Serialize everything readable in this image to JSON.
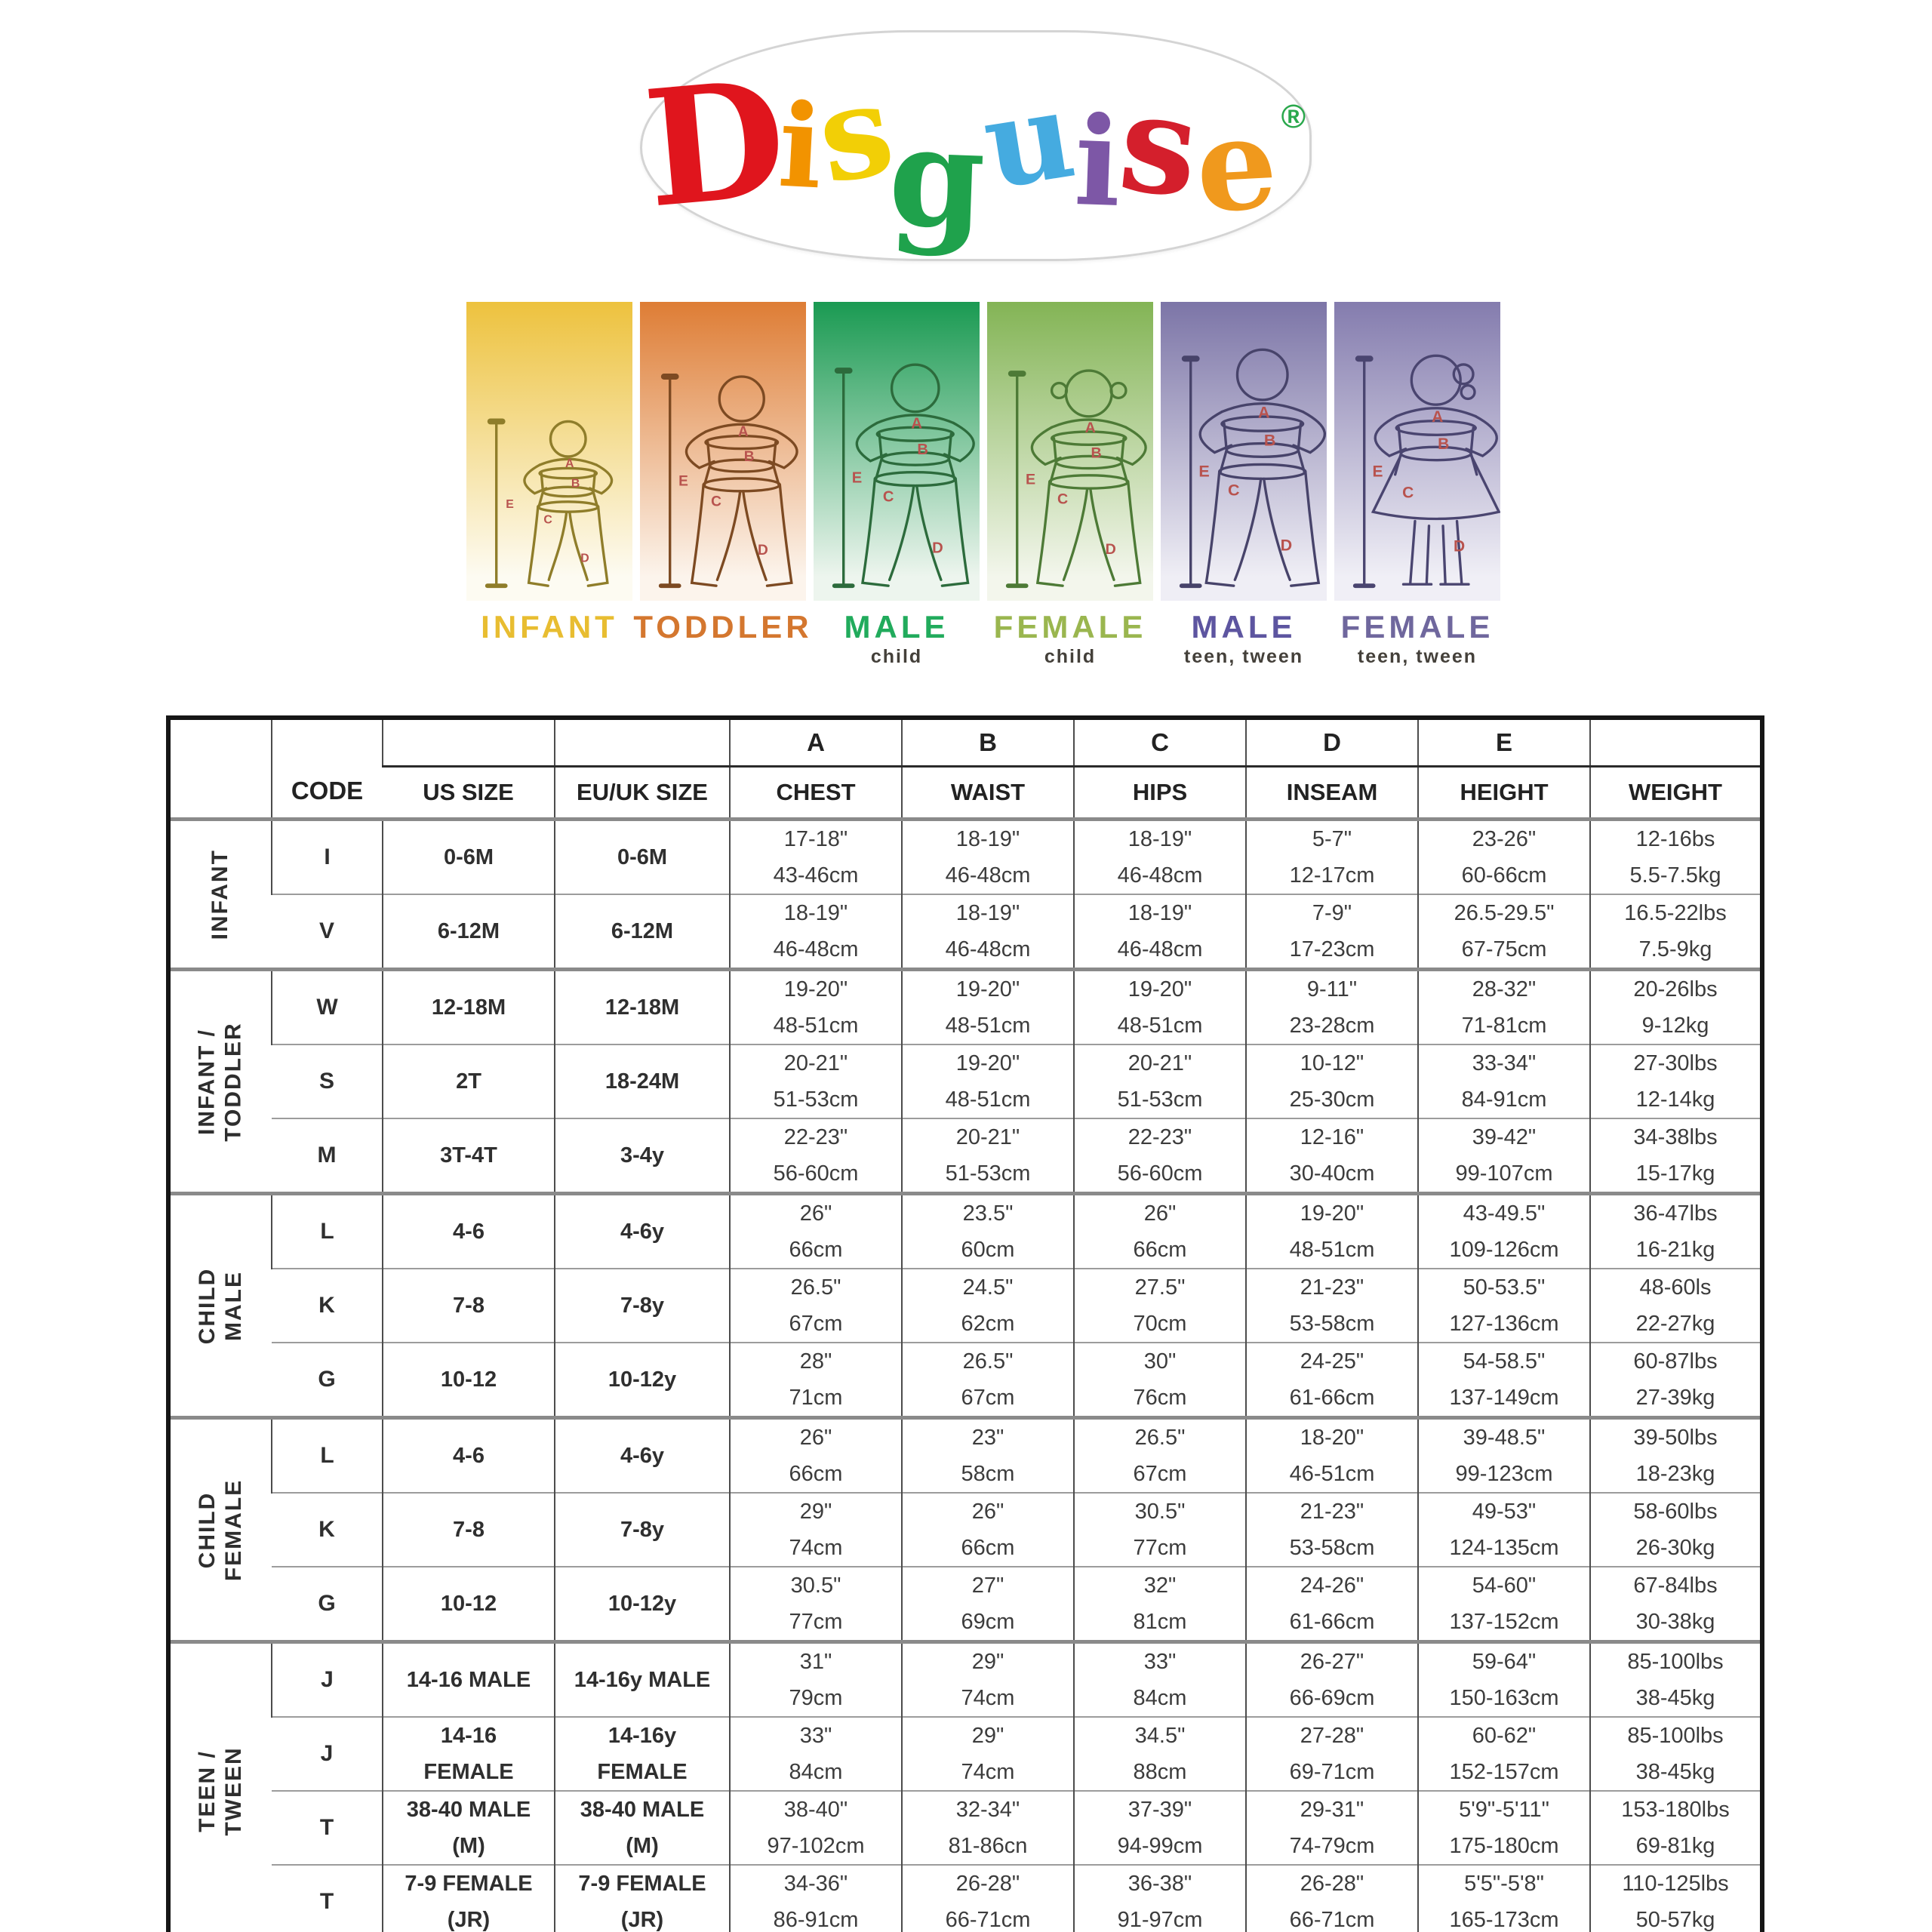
{
  "logo": {
    "letters": [
      {
        "ch": "D",
        "color": "#e0151d"
      },
      {
        "ch": "i",
        "color": "#f29300"
      },
      {
        "ch": "s",
        "color": "#f2cf06"
      },
      {
        "ch": "g",
        "color": "#1fa24c"
      },
      {
        "ch": "u",
        "color": "#45abe0"
      },
      {
        "ch": "i",
        "color": "#7d57a6"
      },
      {
        "ch": "s",
        "color": "#d41f2c"
      },
      {
        "ch": "e",
        "color": "#f0991d"
      }
    ],
    "registered": "®",
    "registered_color": "#2aa84c"
  },
  "figures_common": {
    "measure_letters": [
      "A",
      "B",
      "C",
      "D",
      "E"
    ],
    "measure_letter_color": "#b8534e"
  },
  "figures": [
    {
      "label": "INFANT",
      "sublabel": "",
      "variant": "infant",
      "label_color": "#e8bd31",
      "bg_top": "#edc23e",
      "bg_bottom": "#fdfbf2",
      "line_color": "#8f7d2a"
    },
    {
      "label": "TODDLER",
      "sublabel": "",
      "variant": "toddler",
      "label_color": "#d4772f",
      "bg_top": "#de7d35",
      "bg_bottom": "#fcf4ec",
      "line_color": "#7d4a22"
    },
    {
      "label": "MALE",
      "sublabel": "child",
      "variant": "child-male",
      "label_color": "#21ab5c",
      "bg_top": "#1a9a52",
      "bg_bottom": "#edf5ee",
      "line_color": "#2c6b3c"
    },
    {
      "label": "FEMALE",
      "sublabel": "child",
      "variant": "child-female",
      "label_color": "#9ab64f",
      "bg_top": "#83b455",
      "bg_bottom": "#f3f6ec",
      "line_color": "#4d7a36"
    },
    {
      "label": "MALE",
      "sublabel": "teen, tween",
      "variant": "teen-male",
      "label_color": "#5d55a0",
      "bg_top": "#7c75a7",
      "bg_bottom": "#efeef5",
      "line_color": "#47436a"
    },
    {
      "label": "FEMALE",
      "sublabel": "teen, tween",
      "variant": "teen-female",
      "label_color": "#6f679d",
      "bg_top": "#847cae",
      "bg_bottom": "#f0eff6",
      "line_color": "#4a4570"
    }
  ],
  "table": {
    "letter_headers": [
      "A",
      "B",
      "C",
      "D",
      "E"
    ],
    "column_headers": [
      "CODE",
      "US SIZE",
      "EU/UK SIZE",
      "CHEST",
      "WAIST",
      "HIPS",
      "INSEAM",
      "HEIGHT",
      "WEIGHT"
    ],
    "groups": [
      {
        "name": "INFANT",
        "rows": [
          {
            "code": "I",
            "us": [
              "0-6M"
            ],
            "eu": [
              "0-6M"
            ],
            "chest": [
              "17-18\"",
              "43-46cm"
            ],
            "waist": [
              "18-19\"",
              "46-48cm"
            ],
            "hips": [
              "18-19\"",
              "46-48cm"
            ],
            "inseam": [
              "5-7\"",
              "12-17cm"
            ],
            "height": [
              "23-26\"",
              "60-66cm"
            ],
            "weight": [
              "12-16bs",
              "5.5-7.5kg"
            ]
          },
          {
            "code": "V",
            "us": [
              "6-12M"
            ],
            "eu": [
              "6-12M"
            ],
            "chest": [
              "18-19\"",
              "46-48cm"
            ],
            "waist": [
              "18-19\"",
              "46-48cm"
            ],
            "hips": [
              "18-19\"",
              "46-48cm"
            ],
            "inseam": [
              "7-9\"",
              "17-23cm"
            ],
            "height": [
              "26.5-29.5\"",
              "67-75cm"
            ],
            "weight": [
              "16.5-22lbs",
              "7.5-9kg"
            ]
          }
        ]
      },
      {
        "name": "INFANT /\nTODDLER",
        "rows": [
          {
            "code": "W",
            "us": [
              "12-18M"
            ],
            "eu": [
              "12-18M"
            ],
            "chest": [
              "19-20\"",
              "48-51cm"
            ],
            "waist": [
              "19-20\"",
              "48-51cm"
            ],
            "hips": [
              "19-20\"",
              "48-51cm"
            ],
            "inseam": [
              "9-11\"",
              "23-28cm"
            ],
            "height": [
              "28-32\"",
              "71-81cm"
            ],
            "weight": [
              "20-26lbs",
              "9-12kg"
            ]
          },
          {
            "code": "S",
            "us": [
              "2T"
            ],
            "eu": [
              "18-24M"
            ],
            "chest": [
              "20-21\"",
              "51-53cm"
            ],
            "waist": [
              "19-20\"",
              "48-51cm"
            ],
            "hips": [
              "20-21\"",
              "51-53cm"
            ],
            "inseam": [
              "10-12\"",
              "25-30cm"
            ],
            "height": [
              "33-34\"",
              "84-91cm"
            ],
            "weight": [
              "27-30lbs",
              "12-14kg"
            ]
          },
          {
            "code": "M",
            "us": [
              "3T-4T"
            ],
            "eu": [
              "3-4y"
            ],
            "chest": [
              "22-23\"",
              "56-60cm"
            ],
            "waist": [
              "20-21\"",
              "51-53cm"
            ],
            "hips": [
              "22-23\"",
              "56-60cm"
            ],
            "inseam": [
              "12-16\"",
              "30-40cm"
            ],
            "height": [
              "39-42\"",
              "99-107cm"
            ],
            "weight": [
              "34-38lbs",
              "15-17kg"
            ]
          }
        ]
      },
      {
        "name": "CHILD MALE",
        "rows": [
          {
            "code": "L",
            "us": [
              "4-6"
            ],
            "eu": [
              "4-6y"
            ],
            "chest": [
              "26\"",
              "66cm"
            ],
            "waist": [
              "23.5\"",
              "60cm"
            ],
            "hips": [
              "26\"",
              "66cm"
            ],
            "inseam": [
              "19-20\"",
              "48-51cm"
            ],
            "height": [
              "43-49.5\"",
              "109-126cm"
            ],
            "weight": [
              "36-47lbs",
              "16-21kg"
            ]
          },
          {
            "code": "K",
            "us": [
              "7-8"
            ],
            "eu": [
              "7-8y"
            ],
            "chest": [
              "26.5\"",
              "67cm"
            ],
            "waist": [
              "24.5\"",
              "62cm"
            ],
            "hips": [
              "27.5\"",
              "70cm"
            ],
            "inseam": [
              "21-23\"",
              "53-58cm"
            ],
            "height": [
              "50-53.5\"",
              "127-136cm"
            ],
            "weight": [
              "48-60ls",
              "22-27kg"
            ]
          },
          {
            "code": "G",
            "us": [
              "10-12"
            ],
            "eu": [
              "10-12y"
            ],
            "chest": [
              "28\"",
              "71cm"
            ],
            "waist": [
              "26.5\"",
              "67cm"
            ],
            "hips": [
              "30\"",
              "76cm"
            ],
            "inseam": [
              "24-25\"",
              "61-66cm"
            ],
            "height": [
              "54-58.5\"",
              "137-149cm"
            ],
            "weight": [
              "60-87lbs",
              "27-39kg"
            ]
          }
        ]
      },
      {
        "name": "CHILD FEMALE",
        "rows": [
          {
            "code": "L",
            "us": [
              "4-6"
            ],
            "eu": [
              "4-6y"
            ],
            "chest": [
              "26\"",
              "66cm"
            ],
            "waist": [
              "23\"",
              "58cm"
            ],
            "hips": [
              "26.5\"",
              "67cm"
            ],
            "inseam": [
              "18-20\"",
              "46-51cm"
            ],
            "height": [
              "39-48.5\"",
              "99-123cm"
            ],
            "weight": [
              "39-50lbs",
              "18-23kg"
            ]
          },
          {
            "code": "K",
            "us": [
              "7-8"
            ],
            "eu": [
              "7-8y"
            ],
            "chest": [
              "29\"",
              "74cm"
            ],
            "waist": [
              "26\"",
              "66cm"
            ],
            "hips": [
              "30.5\"",
              "77cm"
            ],
            "inseam": [
              "21-23\"",
              "53-58cm"
            ],
            "height": [
              "49-53\"",
              "124-135cm"
            ],
            "weight": [
              "58-60lbs",
              "26-30kg"
            ]
          },
          {
            "code": "G",
            "us": [
              "10-12"
            ],
            "eu": [
              "10-12y"
            ],
            "chest": [
              "30.5\"",
              "77cm"
            ],
            "waist": [
              "27\"",
              "69cm"
            ],
            "hips": [
              "32\"",
              "81cm"
            ],
            "inseam": [
              "24-26\"",
              "61-66cm"
            ],
            "height": [
              "54-60\"",
              "137-152cm"
            ],
            "weight": [
              "67-84lbs",
              "30-38kg"
            ]
          }
        ]
      },
      {
        "name": "TEEN / TWEEN",
        "rows": [
          {
            "code": "J",
            "us": [
              "14-16 MALE"
            ],
            "eu": [
              "14-16y MALE"
            ],
            "chest": [
              "31\"",
              "79cm"
            ],
            "waist": [
              "29\"",
              "74cm"
            ],
            "hips": [
              "33\"",
              "84cm"
            ],
            "inseam": [
              "26-27\"",
              "66-69cm"
            ],
            "height": [
              "59-64\"",
              "150-163cm"
            ],
            "weight": [
              "85-100lbs",
              "38-45kg"
            ]
          },
          {
            "code": "J",
            "us": [
              "14-16",
              "FEMALE"
            ],
            "eu": [
              "14-16y",
              "FEMALE"
            ],
            "chest": [
              "33\"",
              "84cm"
            ],
            "waist": [
              "29\"",
              "74cm"
            ],
            "hips": [
              "34.5\"",
              "88cm"
            ],
            "inseam": [
              "27-28\"",
              "69-71cm"
            ],
            "height": [
              "60-62\"",
              "152-157cm"
            ],
            "weight": [
              "85-100lbs",
              "38-45kg"
            ]
          },
          {
            "code": "T",
            "us": [
              "38-40 MALE",
              "(M)"
            ],
            "eu": [
              "38-40 MALE",
              "(M)"
            ],
            "chest": [
              "38-40\"",
              "97-102cm"
            ],
            "waist": [
              "32-34\"",
              "81-86cn"
            ],
            "hips": [
              "37-39\"",
              "94-99cm"
            ],
            "inseam": [
              "29-31\"",
              "74-79cm"
            ],
            "height": [
              "5'9\"-5'11\"",
              "175-180cm"
            ],
            "weight": [
              "153-180lbs",
              "69-81kg"
            ]
          },
          {
            "code": "T",
            "us": [
              "7-9 FEMALE",
              "(JR)"
            ],
            "eu": [
              "7-9 FEMALE",
              "(JR)"
            ],
            "chest": [
              "34-36\"",
              "86-91cm"
            ],
            "waist": [
              "26-28\"",
              "66-71cm"
            ],
            "hips": [
              "36-38\"",
              "91-97cm"
            ],
            "inseam": [
              "26-28\"",
              "66-71cm"
            ],
            "height": [
              "5'5\"-5'8\"",
              "165-173cm"
            ],
            "weight": [
              "110-125lbs",
              "50-57kg"
            ]
          }
        ]
      }
    ]
  }
}
